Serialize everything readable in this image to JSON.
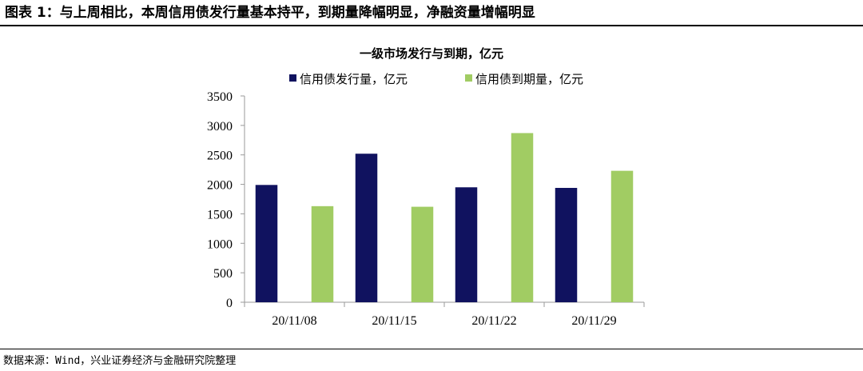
{
  "figure": {
    "title": "图表 1：与上周相比，本周信用债发行量基本持平，到期量降幅明显，净融资量增幅明显",
    "source": "数据来源：Wind，兴业证券经济与金融研究院整理"
  },
  "colors": {
    "issuance": "#10125F",
    "maturity": "#A1CC63",
    "axis": "#9A9A9A"
  },
  "chart_data": {
    "type": "bar",
    "title": "一级市场发行与到期，亿元",
    "categories": [
      "20/11/08",
      "20/11/15",
      "20/11/22",
      "20/11/29"
    ],
    "series": [
      {
        "name": "信用债发行量，亿元",
        "values": [
          1990,
          2520,
          1950,
          1940
        ]
      },
      {
        "name": "信用债到期量，亿元",
        "values": [
          1630,
          1620,
          2870,
          2230
        ]
      }
    ],
    "xlabel": "",
    "ylabel": "",
    "ylim": [
      0,
      3500
    ],
    "yticks": [
      0,
      500,
      1000,
      1500,
      2000,
      2500,
      3000,
      3500
    ],
    "grid": false,
    "legend": "top"
  }
}
